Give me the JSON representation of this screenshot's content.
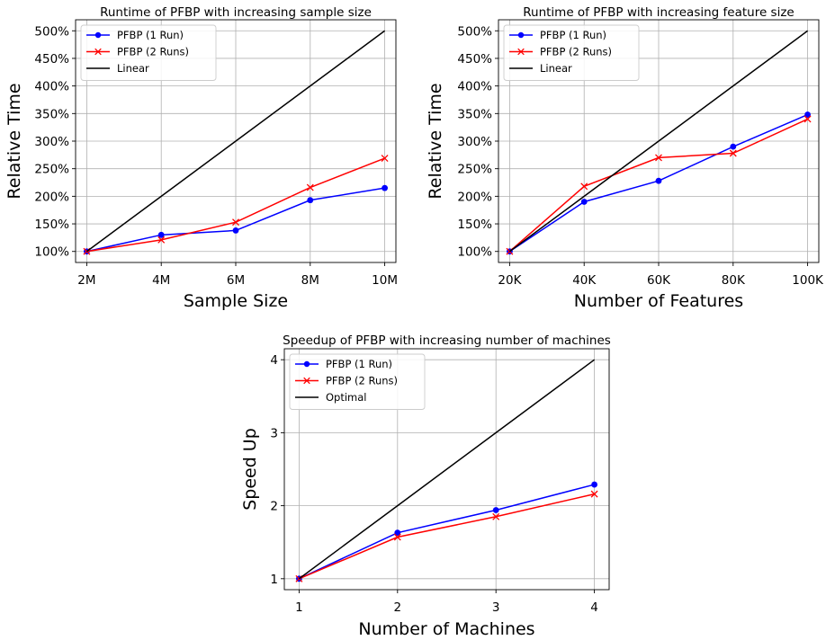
{
  "chart_data": [
    {
      "type": "line",
      "title": "Runtime of PFBP with increasing sample size",
      "xlabel": "Sample Size",
      "ylabel": "Relative Time",
      "categories": [
        "2M",
        "4M",
        "6M",
        "8M",
        "10M"
      ],
      "x": [
        2,
        4,
        6,
        8,
        10
      ],
      "xlim": [
        1.7,
        10.3
      ],
      "ylim": [
        0.8,
        5.2
      ],
      "yticks": [
        1,
        1.5,
        2,
        2.5,
        3,
        3.5,
        4,
        4.5,
        5
      ],
      "yticklabels": [
        "100%",
        "150%",
        "200%",
        "250%",
        "300%",
        "350%",
        "400%",
        "450%",
        "500%"
      ],
      "grid": true,
      "legend": "top-left",
      "series": [
        {
          "name": "PFBP (1 Run)",
          "color": "#0000ff",
          "marker": "dot",
          "values": [
            1.0,
            1.3,
            1.38,
            1.93,
            2.15
          ]
        },
        {
          "name": "PFBP (2 Runs)",
          "color": "#ff0000",
          "marker": "x",
          "values": [
            1.0,
            1.21,
            1.53,
            2.16,
            2.69
          ]
        },
        {
          "name": "Linear",
          "color": "#000000",
          "marker": "none",
          "values": [
            1.0,
            2.0,
            3.0,
            4.0,
            5.0
          ]
        }
      ]
    },
    {
      "type": "line",
      "title": "Runtime of PFBP with increasing feature size",
      "xlabel": "Number of Features",
      "ylabel": "Relative Time",
      "categories": [
        "20K",
        "40K",
        "60K",
        "80K",
        "100K"
      ],
      "x": [
        20,
        40,
        60,
        80,
        100
      ],
      "xlim": [
        17,
        103
      ],
      "ylim": [
        0.8,
        5.2
      ],
      "yticks": [
        1,
        1.5,
        2,
        2.5,
        3,
        3.5,
        4,
        4.5,
        5
      ],
      "yticklabels": [
        "100%",
        "150%",
        "200%",
        "250%",
        "300%",
        "350%",
        "400%",
        "450%",
        "500%"
      ],
      "grid": true,
      "legend": "top-left",
      "series": [
        {
          "name": "PFBP (1 Run)",
          "color": "#0000ff",
          "marker": "dot",
          "values": [
            1.0,
            1.9,
            2.28,
            2.9,
            3.48
          ]
        },
        {
          "name": "PFBP (2 Runs)",
          "color": "#ff0000",
          "marker": "x",
          "values": [
            1.0,
            2.18,
            2.7,
            2.78,
            3.4
          ]
        },
        {
          "name": "Linear",
          "color": "#000000",
          "marker": "none",
          "values": [
            1.0,
            2.0,
            3.0,
            4.0,
            5.0
          ]
        }
      ]
    },
    {
      "type": "line",
      "title": "Speedup of PFBP with increasing number of machines",
      "xlabel": "Number of Machines",
      "ylabel": "Speed Up",
      "categories": [
        "1",
        "2",
        "3",
        "4"
      ],
      "x": [
        1,
        2,
        3,
        4
      ],
      "xlim": [
        0.85,
        4.15
      ],
      "ylim": [
        0.85,
        4.15
      ],
      "yticks": [
        1,
        2,
        3,
        4
      ],
      "yticklabels": [
        "1",
        "2",
        "3",
        "4"
      ],
      "grid": true,
      "legend": "top-left",
      "series": [
        {
          "name": "PFBP (1 Run)",
          "color": "#0000ff",
          "marker": "dot",
          "values": [
            1.0,
            1.63,
            1.94,
            2.29
          ]
        },
        {
          "name": "PFBP (2 Runs)",
          "color": "#ff0000",
          "marker": "x",
          "values": [
            1.0,
            1.57,
            1.85,
            2.16
          ]
        },
        {
          "name": "Optimal",
          "color": "#000000",
          "marker": "none",
          "values": [
            1.0,
            2.0,
            3.0,
            4.0
          ]
        }
      ]
    }
  ]
}
